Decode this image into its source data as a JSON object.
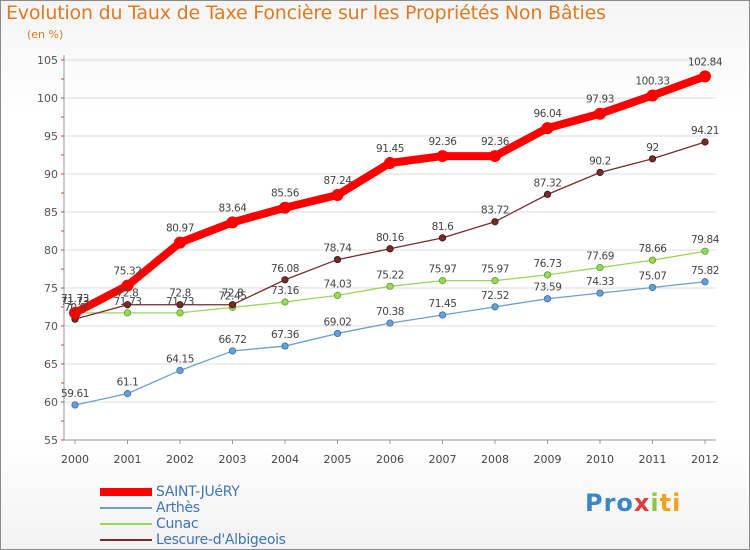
{
  "chart_data": {
    "type": "line",
    "title": "Evolution du Taux de Taxe Foncière sur les Propriétés Non Bâties",
    "subtitle": "(en %)",
    "x": [
      "2000",
      "2001",
      "2002",
      "2003",
      "2004",
      "2005",
      "2006",
      "2007",
      "2008",
      "2009",
      "2010",
      "2011",
      "2012"
    ],
    "ylim": [
      55,
      105
    ],
    "yticks": [
      "55",
      "60",
      "65",
      "70",
      "75",
      "80",
      "85",
      "90",
      "95",
      "100",
      "105"
    ],
    "grid": "horizontal",
    "legend_position": "bottom-left",
    "series": [
      {
        "name": "SAINT-JUéRY",
        "color": "#ff0000",
        "values": [
          71.73,
          75.32,
          80.97,
          83.64,
          85.56,
          87.24,
          91.45,
          92.36,
          92.36,
          96.04,
          97.93,
          100.33,
          102.84
        ],
        "labels": [
          "71.73",
          "75.32",
          "80.97",
          "83.64",
          "85.56",
          "87.24",
          "91.45",
          "92.36",
          "92.36",
          "96.04",
          "97.93",
          "100.33",
          "102.84"
        ]
      },
      {
        "name": "Arthès",
        "color": "#6a9fcf",
        "values": [
          59.61,
          61.1,
          64.15,
          66.72,
          67.36,
          69.02,
          70.38,
          71.45,
          72.52,
          73.59,
          74.33,
          75.07,
          75.82
        ],
        "labels": [
          "59.61",
          "61.1",
          "64.15",
          "66.72",
          "67.36",
          "69.02",
          "70.38",
          "71.45",
          "72.52",
          "73.59",
          "74.33",
          "75.07",
          "75.82"
        ]
      },
      {
        "name": "Cunac",
        "color": "#99d65b",
        "values": [
          71.73,
          71.73,
          71.73,
          72.45,
          73.16,
          74.03,
          75.22,
          75.97,
          75.97,
          76.73,
          77.69,
          78.66,
          79.84
        ],
        "labels": [
          "71.73",
          "71.73",
          "71.73",
          "72.45",
          "73.16",
          "74.03",
          "75.22",
          "75.97",
          "75.97",
          "76.73",
          "77.69",
          "78.66",
          "79.84"
        ]
      },
      {
        "name": "Lescure-d'Albigeois",
        "color": "#7b2a2a",
        "values": [
          70.9,
          72.8,
          72.8,
          72.8,
          76.08,
          78.74,
          80.16,
          81.6,
          83.72,
          87.32,
          90.2,
          92,
          94.21
        ],
        "labels": [
          "70.9",
          "72.8",
          "72.8",
          "72.8",
          "76.08",
          "78.74",
          "80.16",
          "81.6",
          "83.72",
          "87.32",
          "90.2",
          "92",
          "94.21"
        ]
      }
    ]
  },
  "logo": {
    "p1": "Pro",
    "p2": "x",
    "p3": "i",
    "p4": "ti"
  }
}
